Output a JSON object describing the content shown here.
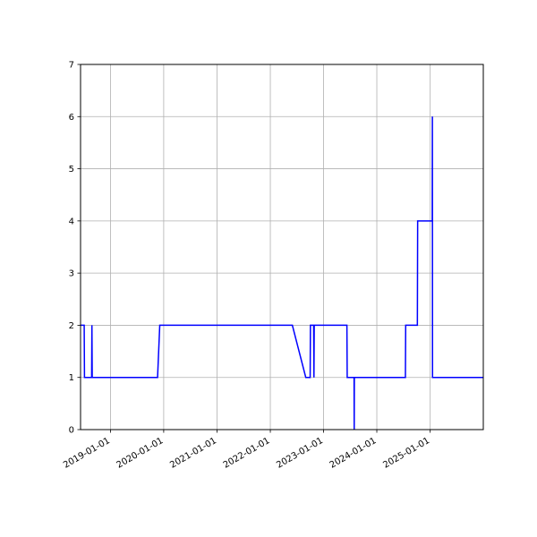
{
  "chart_data": {
    "type": "line",
    "title": "",
    "xlabel": "",
    "ylabel": "",
    "x_axis_type": "date",
    "xlim": [
      "2018-06-10",
      "2025-12-31"
    ],
    "ylim": [
      0,
      7
    ],
    "grid": true,
    "legend": "none",
    "x_ticks": [
      "2019-01-01",
      "2020-01-01",
      "2021-01-01",
      "2022-01-01",
      "2023-01-01",
      "2024-01-01",
      "2025-01-01"
    ],
    "y_ticks": [
      0,
      1,
      2,
      3,
      4,
      5,
      6,
      7
    ],
    "series": [
      {
        "color": "#0000ff",
        "points": [
          [
            "2018-06-10",
            2
          ],
          [
            "2018-07-05",
            2
          ],
          [
            "2018-07-07",
            1
          ],
          [
            "2018-08-25",
            1
          ],
          [
            "2018-08-27",
            2
          ],
          [
            "2018-08-29",
            1
          ],
          [
            "2019-11-20",
            1
          ],
          [
            "2019-12-05",
            2
          ],
          [
            "2022-06-01",
            2
          ],
          [
            "2022-09-01",
            1
          ],
          [
            "2022-10-01",
            1
          ],
          [
            "2022-10-03",
            2
          ],
          [
            "2022-10-25",
            2
          ],
          [
            "2022-10-27",
            1
          ],
          [
            "2022-10-29",
            2
          ],
          [
            "2023-06-10",
            2
          ],
          [
            "2023-06-12",
            1
          ],
          [
            "2023-07-29",
            1
          ],
          [
            "2023-07-30",
            0
          ],
          [
            "2023-07-31",
            1
          ],
          [
            "2024-07-15",
            1
          ],
          [
            "2024-07-17",
            2
          ],
          [
            "2024-10-05",
            2
          ],
          [
            "2024-10-07",
            4
          ],
          [
            "2025-01-15",
            4
          ],
          [
            "2025-01-16",
            6
          ],
          [
            "2025-01-17",
            1
          ],
          [
            "2025-12-31",
            1
          ]
        ]
      }
    ]
  }
}
